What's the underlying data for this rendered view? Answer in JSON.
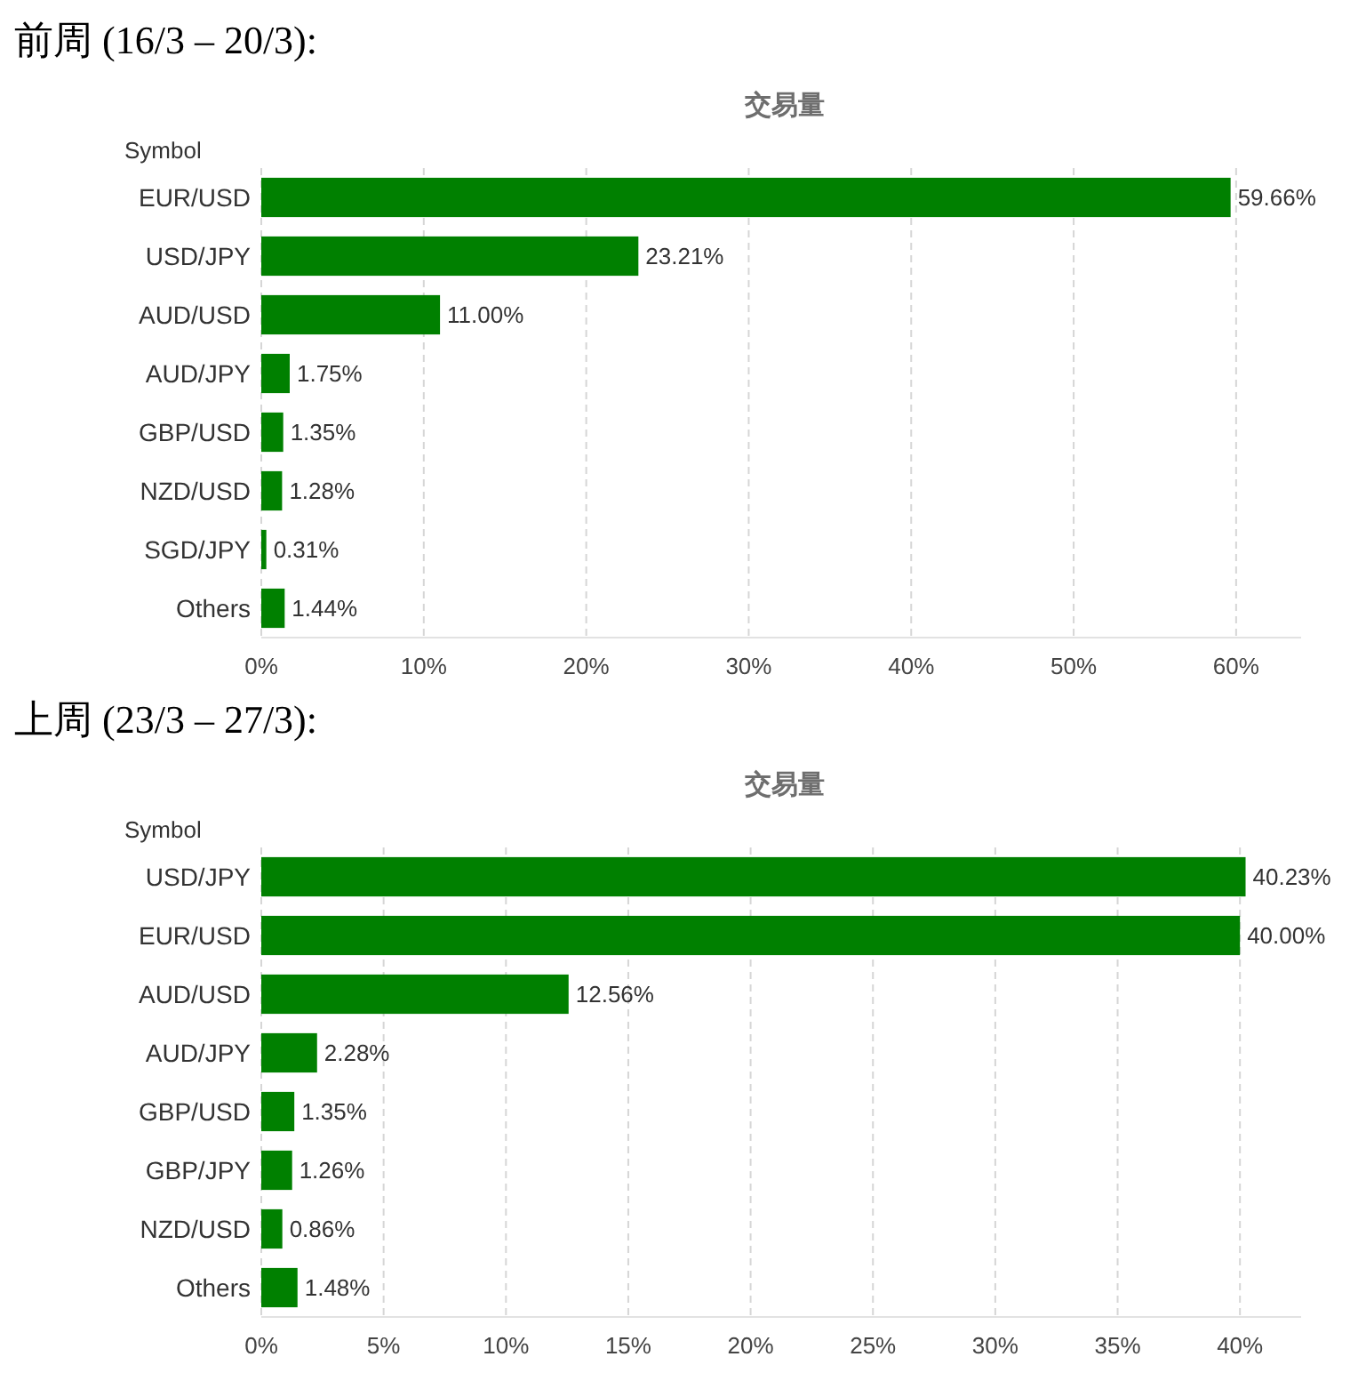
{
  "chart_data": [
    {
      "type": "bar",
      "orientation": "horizontal",
      "title": "前周 (16/3 – 20/3):",
      "xlabel": "交易量",
      "ylabel": "Symbol",
      "categories": [
        "EUR/USD",
        "USD/JPY",
        "AUD/USD",
        "AUD/JPY",
        "GBP/USD",
        "NZD/USD",
        "SGD/JPY",
        "Others"
      ],
      "values": [
        59.66,
        23.21,
        11.0,
        1.75,
        1.35,
        1.28,
        0.31,
        1.44
      ],
      "value_labels": [
        "59.66%",
        "23.21%",
        "11.00%",
        "1.75%",
        "1.35%",
        "1.28%",
        "0.31%",
        "1.44%"
      ],
      "color": "#008000",
      "xlim": [
        0,
        64
      ],
      "xticks": [
        {
          "value": 0,
          "label": "0%"
        },
        {
          "value": 10,
          "label": "10%"
        },
        {
          "value": 20,
          "label": "20%"
        },
        {
          "value": 30,
          "label": "30%"
        },
        {
          "value": 40,
          "label": "40%"
        },
        {
          "value": 50,
          "label": "50%"
        },
        {
          "value": 60,
          "label": "60%"
        }
      ],
      "grid": "x"
    },
    {
      "type": "bar",
      "orientation": "horizontal",
      "title": "上周 (23/3 – 27/3):",
      "xlabel": "交易量",
      "ylabel": "Symbol",
      "categories": [
        "USD/JPY",
        "EUR/USD",
        "AUD/USD",
        "AUD/JPY",
        "GBP/USD",
        "GBP/JPY",
        "NZD/USD",
        "Others"
      ],
      "values": [
        40.23,
        40.0,
        12.56,
        2.28,
        1.35,
        1.26,
        0.86,
        1.48
      ],
      "value_labels": [
        "40.23%",
        "40.00%",
        "12.56%",
        "2.28%",
        "1.35%",
        "1.26%",
        "0.86%",
        "1.48%"
      ],
      "color": "#008000",
      "xlim": [
        0,
        42.5
      ],
      "xticks": [
        {
          "value": 0,
          "label": "0%"
        },
        {
          "value": 5,
          "label": "5%"
        },
        {
          "value": 10,
          "label": "10%"
        },
        {
          "value": 15,
          "label": "15%"
        },
        {
          "value": 20,
          "label": "20%"
        },
        {
          "value": 25,
          "label": "25%"
        },
        {
          "value": 30,
          "label": "30%"
        },
        {
          "value": 35,
          "label": "35%"
        },
        {
          "value": 40,
          "label": "40%"
        }
      ],
      "grid": "x"
    }
  ]
}
